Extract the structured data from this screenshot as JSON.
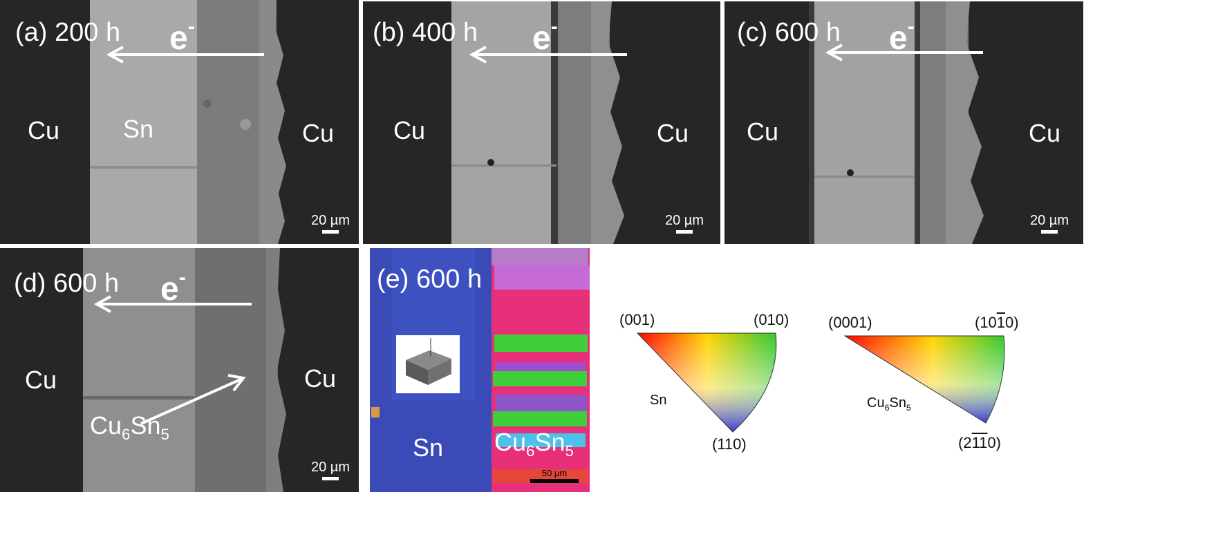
{
  "panels": {
    "a": {
      "title": "(a) 200 h",
      "electron": "e",
      "electron_sup": "-",
      "left": "Cu",
      "middle": "Sn",
      "right": "Cu",
      "scale": "20 µm"
    },
    "b": {
      "title": "(b) 400 h",
      "electron": "e",
      "electron_sup": "-",
      "left": "Cu",
      "right": "Cu",
      "scale": "20 µm"
    },
    "c": {
      "title": "(c) 600 h",
      "electron": "e",
      "electron_sup": "-",
      "left": "Cu",
      "right": "Cu",
      "scale": "20 µm"
    },
    "d": {
      "title": "(d) 600 h",
      "electron": "e",
      "electron_sup": "-",
      "left": "Cu",
      "right": "Cu",
      "imc_main": "Cu",
      "imc_sub1": "6",
      "imc_mid": "Sn",
      "imc_sub2": "5",
      "scale": "20 µm"
    },
    "e": {
      "title": "(e) 600 h",
      "sn": "Sn",
      "imc_main": "Cu",
      "imc_sub1": "6",
      "imc_mid": "Sn",
      "imc_sub2": "5",
      "scale": "50 µm"
    }
  },
  "ipf": {
    "sn": {
      "material": "Sn",
      "top_left": "(001)",
      "top_right": "(010)",
      "bottom": "(110)"
    },
    "cu6sn5": {
      "material_main": "Cu",
      "material_sub1": "6",
      "material_mid": "Sn",
      "material_sub2": "5",
      "top_left": "(0001)",
      "top_right": "(10̅0)",
      "top_right_pre": "(10",
      "top_right_bar": "1",
      "top_right_post": "0)",
      "bottom_pre": "(2",
      "bottom_bar1": "1",
      "bottom_bar2": "1",
      "bottom_post": "0)"
    }
  },
  "colors": {
    "cu": "#262626",
    "sn": "#a6a6a6",
    "imc": "#7a7a7a",
    "ebsd_sn": "#3a4bb8",
    "ebsd_imc": "#e8307a"
  }
}
